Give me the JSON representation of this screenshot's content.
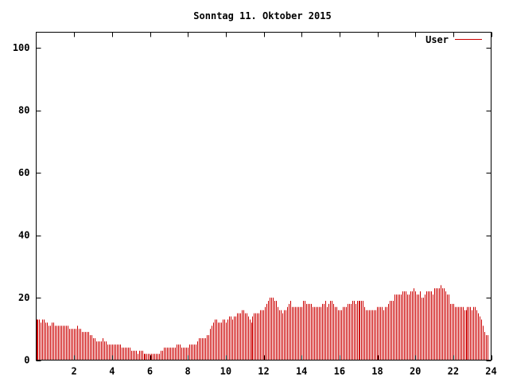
{
  "chart_data": {
    "type": "bar",
    "title": "Sonntag 11. Oktober 2015",
    "xlabel": "",
    "ylabel": "",
    "xlim": [
      0,
      24
    ],
    "ylim": [
      0,
      105
    ],
    "x_ticks": [
      2,
      4,
      6,
      8,
      10,
      12,
      14,
      16,
      18,
      20,
      22,
      24
    ],
    "y_ticks": [
      0,
      20,
      40,
      60,
      80,
      100
    ],
    "grid": false,
    "legend_position": "top-right",
    "colors": {
      "series": "#cc0000",
      "axis": "#000000",
      "background": "#ffffff"
    },
    "series": [
      {
        "name": "User",
        "x_start": 0,
        "x_step": 0.0833,
        "values": [
          13,
          13,
          13,
          12,
          13,
          13,
          12,
          12,
          11,
          11,
          12,
          12,
          11,
          11,
          11,
          11,
          11,
          11,
          11,
          11,
          11,
          10,
          10,
          10,
          10,
          10,
          11,
          10,
          10,
          9,
          9,
          9,
          9,
          9,
          8,
          8,
          7,
          7,
          6,
          6,
          6,
          6,
          7,
          6,
          6,
          5,
          5,
          5,
          5,
          5,
          5,
          5,
          5,
          5,
          4,
          4,
          4,
          4,
          4,
          4,
          3,
          3,
          3,
          3,
          2,
          3,
          3,
          3,
          2,
          2,
          2,
          2,
          2,
          2,
          2,
          2,
          2,
          2,
          2,
          3,
          3,
          4,
          4,
          4,
          4,
          4,
          4,
          4,
          4,
          5,
          5,
          5,
          4,
          4,
          4,
          4,
          4,
          5,
          5,
          5,
          5,
          5,
          6,
          7,
          7,
          7,
          7,
          7,
          8,
          8,
          10,
          11,
          12,
          13,
          13,
          12,
          12,
          12,
          13,
          13,
          12,
          13,
          14,
          14,
          13,
          14,
          14,
          15,
          15,
          15,
          16,
          16,
          15,
          15,
          14,
          13,
          12,
          14,
          15,
          15,
          15,
          15,
          16,
          16,
          16,
          17,
          18,
          19,
          20,
          20,
          20,
          19,
          19,
          17,
          16,
          16,
          15,
          16,
          16,
          17,
          18,
          19,
          17,
          17,
          17,
          17,
          17,
          17,
          17,
          19,
          19,
          18,
          18,
          18,
          18,
          17,
          17,
          17,
          17,
          17,
          17,
          18,
          18,
          19,
          17,
          18,
          19,
          19,
          18,
          17,
          17,
          16,
          16,
          16,
          17,
          17,
          17,
          18,
          18,
          18,
          19,
          19,
          18,
          19,
          19,
          19,
          19,
          19,
          17,
          16,
          16,
          16,
          16,
          16,
          16,
          16,
          17,
          17,
          17,
          17,
          16,
          17,
          17,
          18,
          19,
          19,
          19,
          21,
          21,
          21,
          21,
          21,
          22,
          22,
          22,
          21,
          21,
          22,
          22,
          23,
          22,
          21,
          21,
          22,
          20,
          20,
          21,
          22,
          22,
          22,
          22,
          21,
          23,
          23,
          23,
          23,
          24,
          23,
          23,
          22,
          21,
          21,
          18,
          18,
          18,
          17,
          17,
          17,
          17,
          17,
          17,
          16,
          16,
          17,
          17,
          17,
          16,
          17,
          17,
          16,
          15,
          14,
          13,
          11,
          9,
          8,
          8
        ]
      }
    ]
  }
}
